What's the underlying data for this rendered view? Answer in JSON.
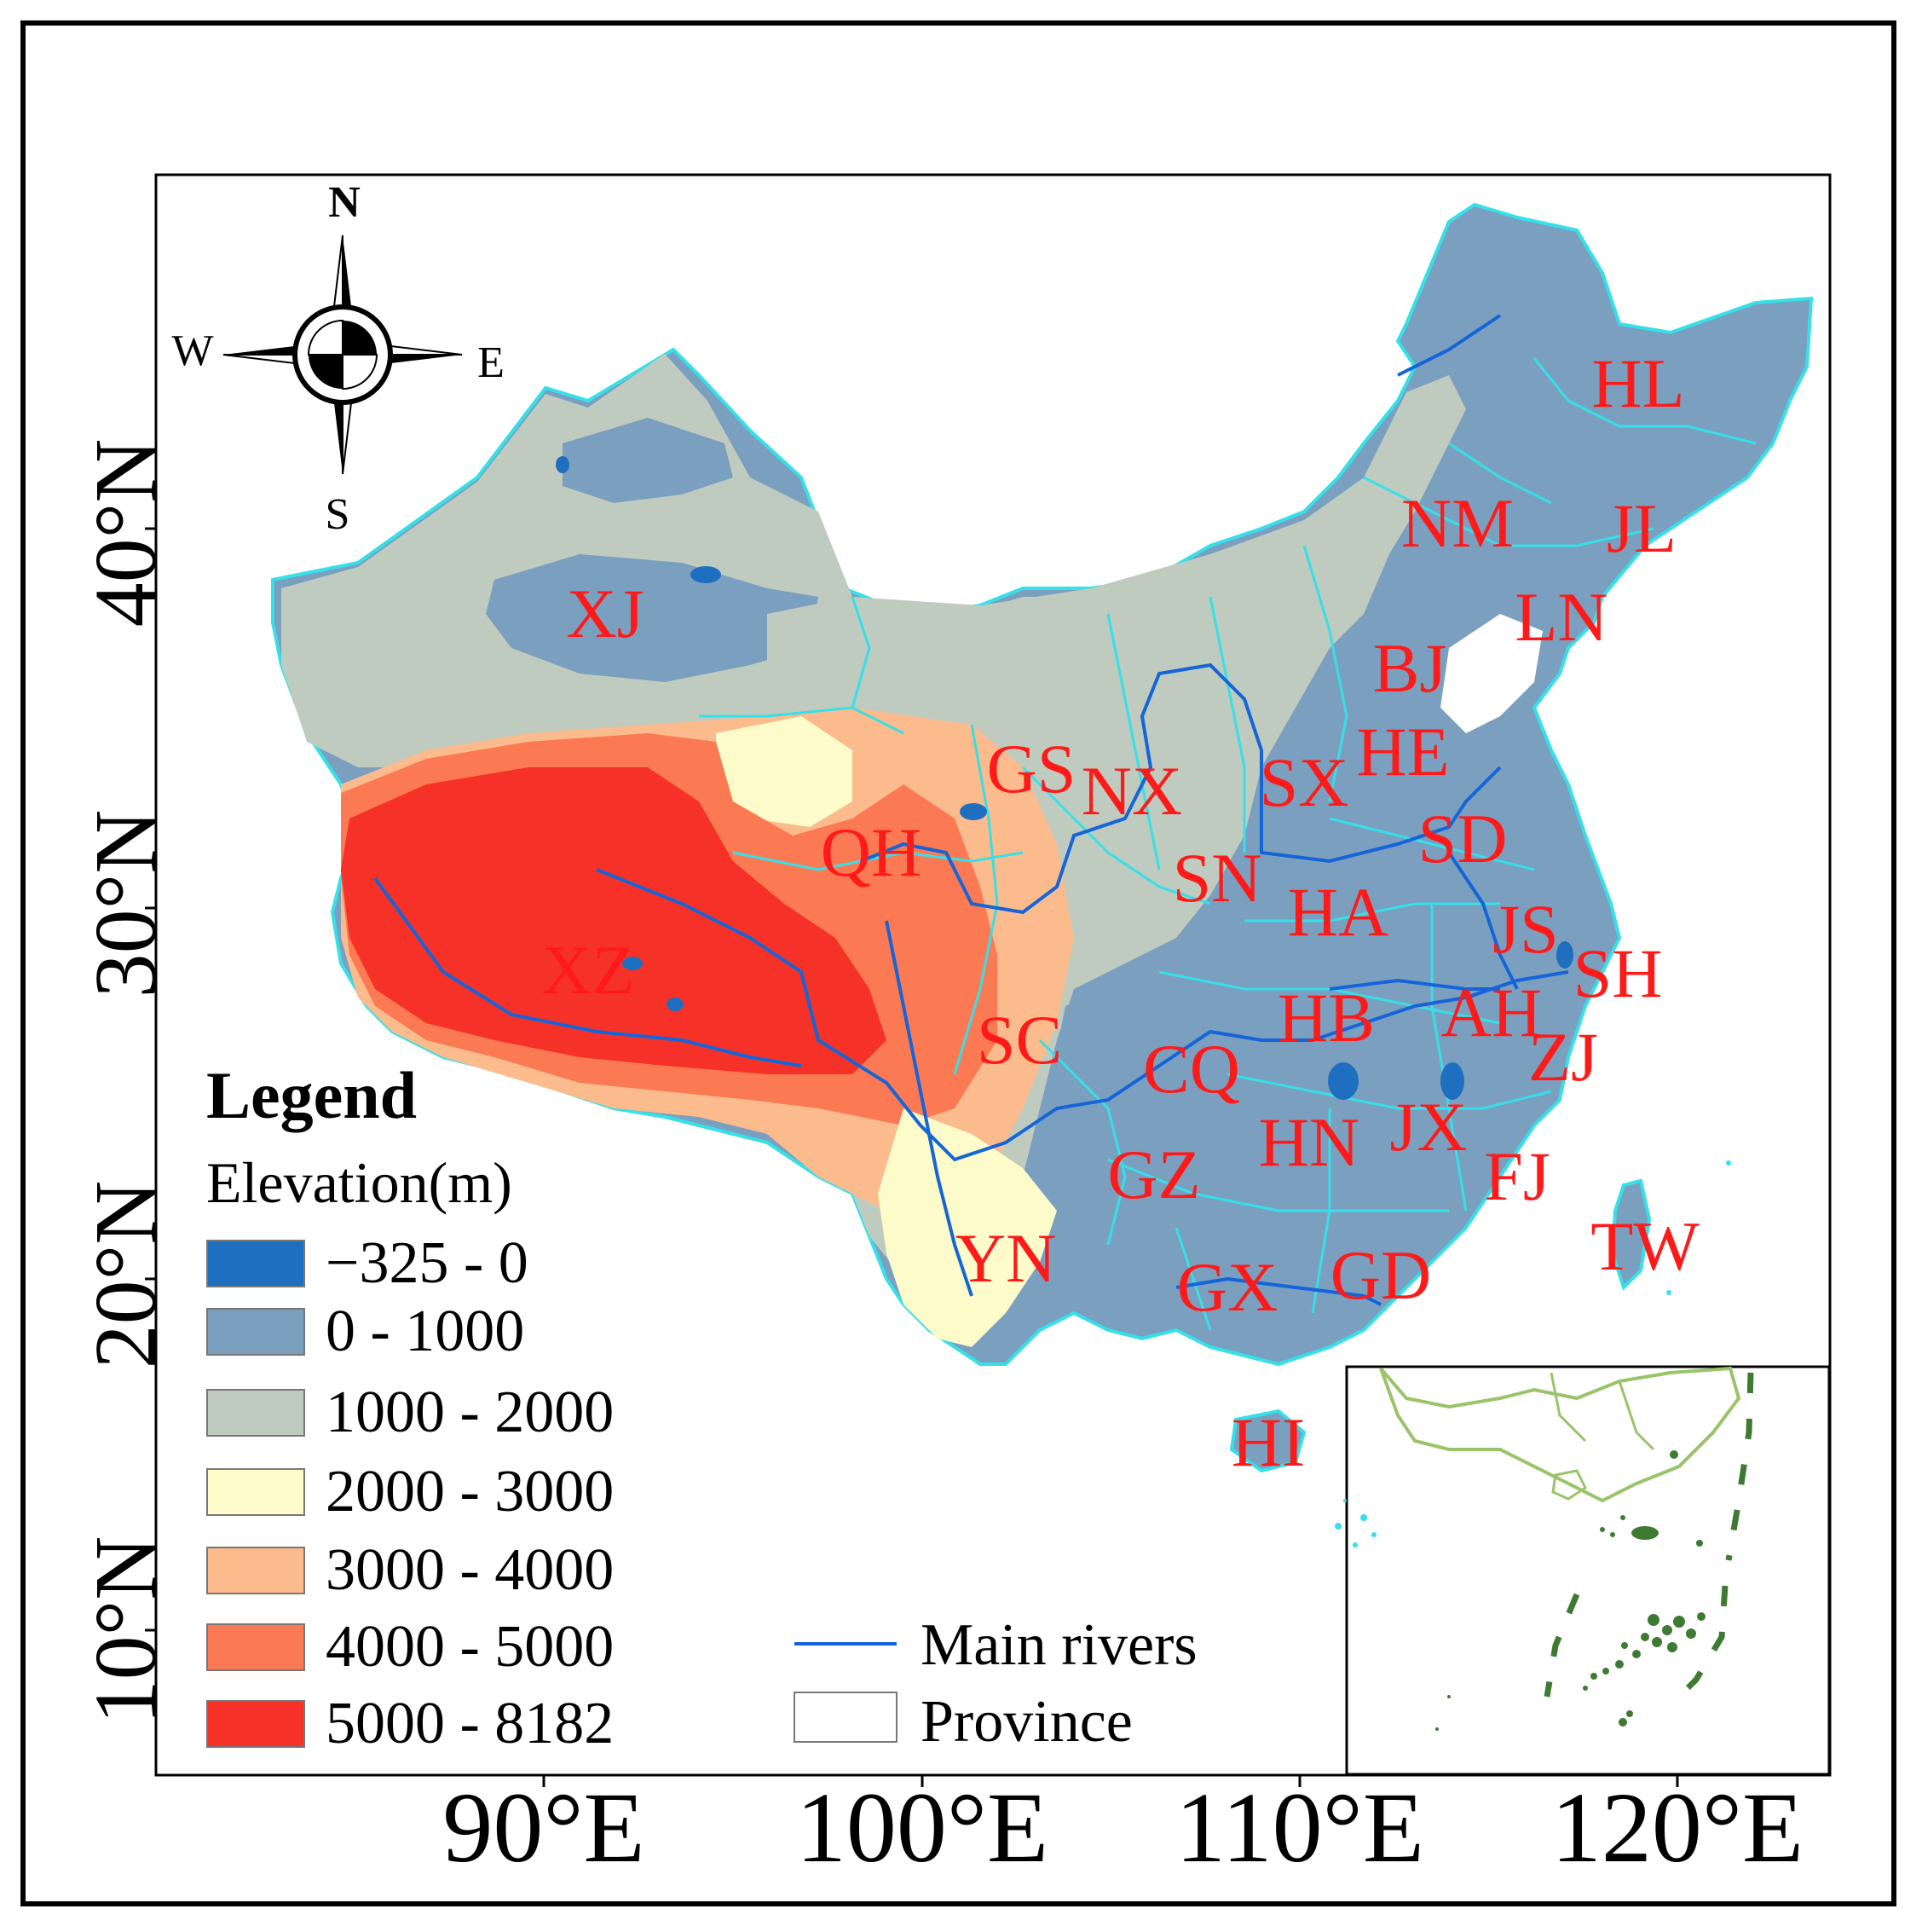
{
  "compass": {
    "north": "N",
    "south": "S",
    "east": "E",
    "west": "W"
  },
  "axes": {
    "lon_ticks": [
      "90°E",
      "100°E",
      "110°E",
      "120°E"
    ],
    "lat_ticks": [
      "40°N",
      "30°N",
      "20°N",
      "10°N"
    ]
  },
  "provinces": [
    "XJ",
    "XZ",
    "QH",
    "GS",
    "NX",
    "SN",
    "SX",
    "NM",
    "HL",
    "JL",
    "LN",
    "BJ",
    "HE",
    "SD",
    "HA",
    "JS",
    "SH",
    "AH",
    "HB",
    "ZJ",
    "CQ",
    "SC",
    "GZ",
    "YN",
    "HN",
    "JX",
    "FJ",
    "TW",
    "GD",
    "GX",
    "HI"
  ],
  "legend": {
    "title": "Legend",
    "subtitle": "Elevation(m)",
    "classes": [
      {
        "label": "−325 - 0",
        "color": "#1f6fc0"
      },
      {
        "label": "0 - 1000",
        "color": "#7b9fbf"
      },
      {
        "label": "1000 - 2000",
        "color": "#bfcbbf"
      },
      {
        "label": "2000 - 3000",
        "color": "#fcfbc9"
      },
      {
        "label": "3000 - 4000",
        "color": "#fcbb8c"
      },
      {
        "label": "4000 - 5000",
        "color": "#fb7a53"
      },
      {
        "label": "5000 - 8182",
        "color": "#f63228"
      }
    ],
    "rivers_label": "Main rivers",
    "province_label": "Province"
  },
  "colors": {
    "river": "#1565d8",
    "province_border": "#35e0e8",
    "label": "#ff1a1a",
    "inset_province": "#9ac46a",
    "inset_island": "#3f7a33"
  }
}
